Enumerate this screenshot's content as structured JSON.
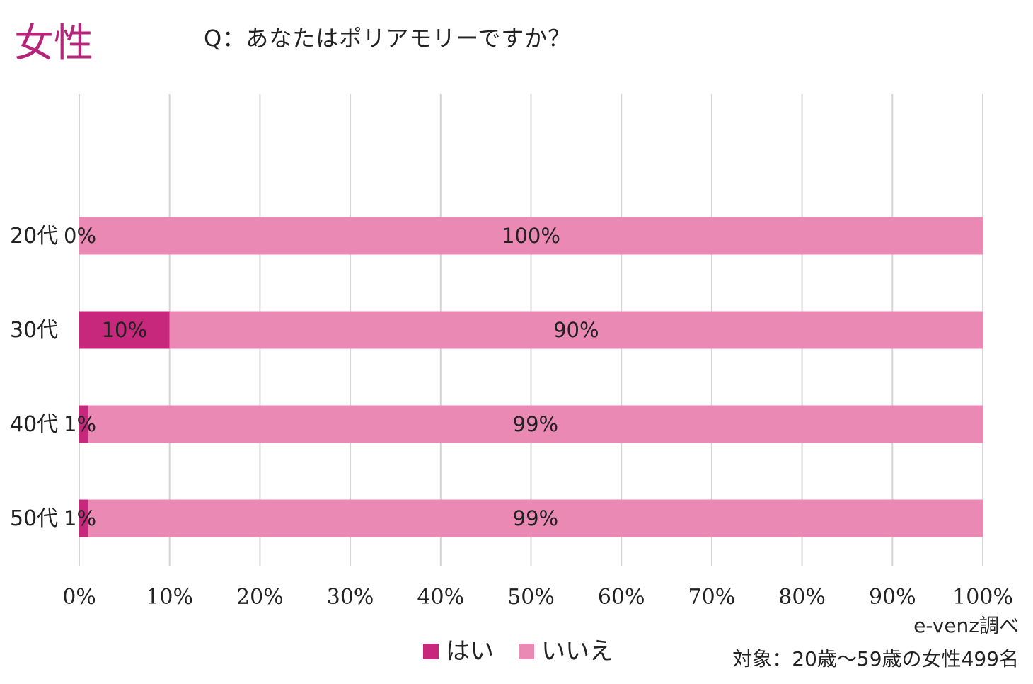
{
  "page": {
    "title": "女性",
    "question": "Q：あなたはポリアモリーですか？",
    "source": "e-venz調べ",
    "target_note": "対象：20歳〜59歳の女性499名"
  },
  "colors": {
    "title": "#b5267a",
    "yes": "#c8287c",
    "no": "#ea8ab4",
    "grid": "#d4d4d4",
    "text": "#222222"
  },
  "chart_data": {
    "type": "bar",
    "orientation": "horizontal",
    "stacked": "percent",
    "title": "Q：あなたはポリアモリーですか？",
    "categories": [
      "20代",
      "30代",
      "40代",
      "50代"
    ],
    "series": [
      {
        "name": "はい",
        "values": [
          0,
          10,
          1,
          1
        ],
        "labels": [
          "0%",
          "10%",
          "1%",
          "1%"
        ],
        "color": "#c8287c"
      },
      {
        "name": "いいえ",
        "values": [
          100,
          90,
          99,
          99
        ],
        "labels": [
          "100%",
          "90%",
          "99%",
          "99%"
        ],
        "color": "#ea8ab4"
      }
    ],
    "xlim": [
      0,
      100
    ],
    "xticks": [
      0,
      10,
      20,
      30,
      40,
      50,
      60,
      70,
      80,
      90,
      100
    ],
    "xtick_labels": [
      "0%",
      "10%",
      "20%",
      "30%",
      "40%",
      "50%",
      "60%",
      "70%",
      "80%",
      "90%",
      "100%"
    ],
    "grid": true,
    "legend": {
      "position": "bottom",
      "entries": [
        "はい",
        "いいえ"
      ]
    }
  }
}
